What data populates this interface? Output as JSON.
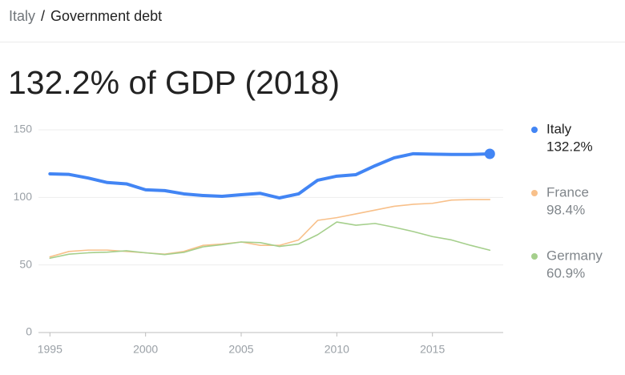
{
  "breadcrumb": {
    "parent": "Italy",
    "separator": "/",
    "current": "Government debt"
  },
  "chart_data": {
    "type": "line",
    "title": "132.2% of GDP (2018)",
    "x": [
      1995,
      1996,
      1997,
      1998,
      1999,
      2000,
      2001,
      2002,
      2003,
      2004,
      2005,
      2006,
      2007,
      2008,
      2009,
      2010,
      2011,
      2012,
      2013,
      2014,
      2015,
      2016,
      2017,
      2018
    ],
    "xlim": [
      1994.4,
      2018.7
    ],
    "xticks": [
      1995,
      2000,
      2005,
      2010,
      2015
    ],
    "ylim": [
      0,
      150
    ],
    "yticks": [
      0,
      50,
      100,
      150
    ],
    "grid": true,
    "legend": "right",
    "series": [
      {
        "name": "Italy",
        "color": "#4285f4",
        "values": [
          117.4,
          117,
          114.3,
          111,
          110,
          105.6,
          105,
          102.6,
          101.4,
          100.8,
          102,
          103,
          99.6,
          102.6,
          112.7,
          115.7,
          116.8,
          123.4,
          129.3,
          132.3,
          132,
          131.8,
          131.8,
          132.2
        ],
        "value_labels": [
          null,
          null,
          null,
          null,
          null,
          null,
          null,
          null,
          null,
          null,
          null,
          null,
          null,
          null,
          null,
          null,
          null,
          null,
          null,
          null,
          null,
          null,
          null,
          "132.2%"
        ]
      },
      {
        "name": "France",
        "color": "#f8c08a",
        "values": [
          56,
          60,
          61,
          61,
          60,
          59,
          58,
          60,
          64.5,
          65.5,
          67,
          64.5,
          64.5,
          68.5,
          83,
          85,
          87.8,
          90.6,
          93.4,
          94.9,
          95.6,
          98,
          98.4,
          98.4
        ],
        "value_labels": [
          null,
          null,
          null,
          null,
          null,
          null,
          null,
          null,
          null,
          null,
          null,
          null,
          null,
          null,
          null,
          null,
          null,
          null,
          null,
          null,
          null,
          null,
          null,
          "98.4%"
        ]
      },
      {
        "name": "Germany",
        "color": "#a5cf8c",
        "values": [
          55,
          58,
          59,
          59.5,
          60.5,
          59,
          57.7,
          59.3,
          63.4,
          65,
          67,
          66.5,
          63.7,
          65.5,
          72.4,
          81.8,
          79.4,
          80.7,
          77.9,
          74.7,
          71,
          68.5,
          64.5,
          60.9
        ],
        "value_labels": [
          null,
          null,
          null,
          null,
          null,
          null,
          null,
          null,
          null,
          null,
          null,
          null,
          null,
          null,
          null,
          null,
          null,
          null,
          null,
          null,
          null,
          null,
          null,
          "60.9%"
        ]
      }
    ]
  }
}
